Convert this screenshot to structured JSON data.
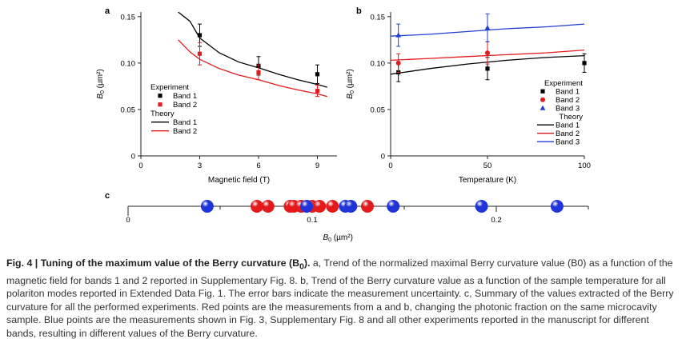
{
  "figure": {
    "caption_lead": "Fig. 4 | Tuning of the maximum value of the Berry curvature (B",
    "caption_lead_sub": "0",
    "caption_lead_end": ").",
    "caption_body": " a, Trend of the normalized maximal Berry curvature value (B0) as a function of the magnetic field for bands 1 and 2 reported in Supplementary Fig. 8. b, Trend of the Berry curvature value as a function of the sample temperature for all polariton modes reported in Extended Data Fig. 1. The error bars indicate the measurement uncertainty. c, Summary of the values extracted of the Berry curvature for all the performed experiments. Red points are the measurements from a and b, changing the photonic fraction on the same microcavity sample. Blue points are the measurements shown in Fig. 3, Supplementary Fig. 8 and all other experiments reported in the manuscript for different bands, resulting in different values of the Berry curvature."
  },
  "colors": {
    "band1": "#000000",
    "band2": "#e41a1c",
    "band3": "#1f3fd6",
    "blue_ball": "#1f35d8",
    "red_ball": "#e3191c"
  },
  "chart_data": [
    {
      "type": "scatter",
      "panel": "a",
      "xlabel": "Magnetic field (T)",
      "ylabel": "B0 (µm²)",
      "xlim": [
        0,
        10
      ],
      "ylim": [
        0,
        0.155
      ],
      "xticks": [
        "0",
        "3",
        "6",
        "9"
      ],
      "yticks": [
        "0",
        "0.05",
        "0.10",
        "0.15"
      ],
      "legend_experiment_title": "Experiment",
      "legend_theory_title": "Theory",
      "series": [
        {
          "name": "Band 1",
          "x": [
            3,
            6,
            9
          ],
          "y": [
            0.13,
            0.097,
            0.088
          ],
          "err": [
            0.012,
            0.01,
            0.01
          ],
          "marker": "square",
          "color": "#000000"
        },
        {
          "name": "Band 2",
          "x": [
            3,
            6,
            9
          ],
          "y": [
            0.11,
            0.09,
            0.07
          ],
          "err": [
            0.012,
            0.008,
            0.006
          ],
          "marker": "square",
          "color": "#e41a1c"
        }
      ],
      "theory": [
        {
          "name": "Band 1",
          "x": [
            1.9,
            2.5,
            3,
            4,
            5,
            6,
            7,
            8,
            9,
            9.5
          ],
          "y": [
            0.155,
            0.145,
            0.127,
            0.111,
            0.101,
            0.095,
            0.088,
            0.082,
            0.077,
            0.074
          ],
          "color": "#000000"
        },
        {
          "name": "Band 2",
          "x": [
            1.9,
            2.5,
            3,
            4,
            5,
            6,
            7,
            8,
            9,
            9.5
          ],
          "y": [
            0.125,
            0.112,
            0.104,
            0.094,
            0.087,
            0.082,
            0.076,
            0.071,
            0.067,
            0.064
          ],
          "color": "#e41a1c"
        }
      ]
    },
    {
      "type": "scatter",
      "panel": "b",
      "xlabel": "Temperature (K)",
      "ylabel": "B0 (µm²)",
      "xlim": [
        0,
        100
      ],
      "ylim": [
        0,
        0.155
      ],
      "xticks": [
        "0",
        "50",
        "100"
      ],
      "yticks": [
        "0",
        "0.05",
        "0.10",
        "0.15"
      ],
      "legend_experiment_title": "Experiment",
      "legend_theory_title": "Theory",
      "series": [
        {
          "name": "Band 1",
          "x": [
            4,
            50,
            100
          ],
          "y": [
            0.09,
            0.094,
            0.1
          ],
          "err": [
            0.01,
            0.012,
            0.01
          ],
          "marker": "square",
          "color": "#000000"
        },
        {
          "name": "Band 2",
          "x": [
            4,
            50
          ],
          "y": [
            0.1,
            0.111
          ],
          "err": [
            0.01,
            0.012
          ],
          "marker": "circle",
          "color": "#e41a1c"
        },
        {
          "name": "Band 3",
          "x": [
            4,
            50
          ],
          "y": [
            0.13,
            0.138
          ],
          "err": [
            0.012,
            0.015
          ],
          "marker": "triangle",
          "color": "#1f3fd6"
        }
      ],
      "theory": [
        {
          "name": "Band 1",
          "x": [
            0,
            20,
            40,
            60,
            80,
            100
          ],
          "y": [
            0.088,
            0.094,
            0.099,
            0.103,
            0.106,
            0.108
          ],
          "color": "#000000"
        },
        {
          "name": "Band 2",
          "x": [
            0,
            20,
            40,
            60,
            80,
            100
          ],
          "y": [
            0.103,
            0.105,
            0.107,
            0.109,
            0.111,
            0.114
          ],
          "color": "#e41a1c"
        },
        {
          "name": "Band 3",
          "x": [
            0,
            20,
            40,
            60,
            80,
            100
          ],
          "y": [
            0.129,
            0.131,
            0.134,
            0.137,
            0.139,
            0.142
          ],
          "color": "#1f3fd6"
        }
      ]
    },
    {
      "type": "scatter",
      "panel": "c",
      "xlabel": "B0 (µm²)",
      "xlim": [
        0,
        0.25
      ],
      "xticks": [
        "0",
        "0.1",
        "0.2"
      ],
      "red_values": [
        0.07,
        0.076,
        0.088,
        0.09,
        0.094,
        0.097,
        0.1,
        0.104,
        0.111,
        0.13
      ],
      "blue_values": [
        0.043,
        0.097,
        0.118,
        0.121,
        0.144,
        0.192,
        0.233
      ]
    }
  ]
}
